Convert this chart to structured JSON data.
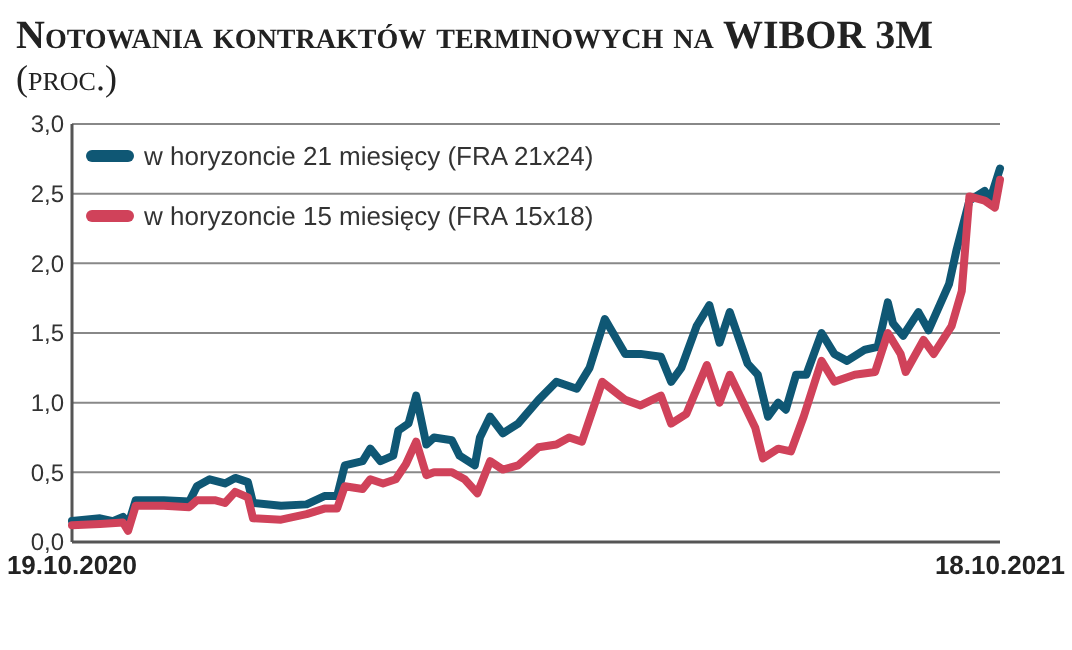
{
  "chart_data": {
    "type": "line",
    "title": "Notowania kontraktów terminowych na WIBOR 3M",
    "subtitle": "(proc.)",
    "xlim": [
      "2020-10-19",
      "2021-10-18"
    ],
    "xticks": [
      {
        "value": "2020-10-19",
        "label": "19.10.2020"
      },
      {
        "value": "2021-10-18",
        "label": "18.10.2021"
      }
    ],
    "ylim": [
      0,
      3
    ],
    "yticks": [
      {
        "value": 0,
        "label": "0,0"
      },
      {
        "value": 0.5,
        "label": "0,5"
      },
      {
        "value": 1,
        "label": "1,0"
      },
      {
        "value": 1.5,
        "label": "1,5"
      },
      {
        "value": 2,
        "label": "2,0"
      },
      {
        "value": 2.5,
        "label": "2,5"
      },
      {
        "value": 3,
        "label": "3,0"
      }
    ],
    "grid": "y",
    "legend": "top left",
    "marker": "none",
    "line_style": "solid",
    "series": [
      {
        "name": "w horyzoncie 21 miesięcy (FRA 21x24)",
        "color": "#0f5774",
        "x": [
          "2020-10-19",
          "2020-10-30",
          "2020-11-04",
          "2020-11-08",
          "2020-11-10",
          "2020-11-13",
          "2020-11-24",
          "2020-12-04",
          "2020-12-07",
          "2020-12-12",
          "2020-12-18",
          "2020-12-22",
          "2020-12-27",
          "2020-12-29",
          "2021-01-09",
          "2021-01-19",
          "2021-01-26",
          "2021-01-31",
          "2021-02-03",
          "2021-02-10",
          "2021-02-13",
          "2021-02-17",
          "2021-02-22",
          "2021-02-24",
          "2021-02-28",
          "2021-03-03",
          "2021-03-07",
          "2021-03-10",
          "2021-03-17",
          "2021-03-20",
          "2021-03-26",
          "2021-03-28",
          "2021-04-01",
          "2021-04-06",
          "2021-04-12",
          "2021-04-20",
          "2021-04-27",
          "2021-05-05",
          "2021-05-10",
          "2021-05-16",
          "2021-05-24",
          "2021-05-30",
          "2021-06-07",
          "2021-06-11",
          "2021-06-15",
          "2021-06-21",
          "2021-06-26",
          "2021-06-30",
          "2021-07-04",
          "2021-07-11",
          "2021-07-15",
          "2021-07-19",
          "2021-07-23",
          "2021-07-26",
          "2021-07-30",
          "2021-08-03",
          "2021-08-09",
          "2021-08-14",
          "2021-08-19",
          "2021-08-26",
          "2021-08-31",
          "2021-09-04",
          "2021-09-06",
          "2021-09-10",
          "2021-09-16",
          "2021-09-20",
          "2021-09-28",
          "2021-10-01",
          "2021-10-06",
          "2021-10-12",
          "2021-10-14",
          "2021-10-18"
        ],
        "values": [
          0.15,
          0.17,
          0.15,
          0.18,
          0.12,
          0.3,
          0.3,
          0.29,
          0.4,
          0.45,
          0.42,
          0.46,
          0.43,
          0.28,
          0.26,
          0.27,
          0.33,
          0.33,
          0.55,
          0.58,
          0.67,
          0.58,
          0.62,
          0.8,
          0.85,
          1.05,
          0.7,
          0.75,
          0.73,
          0.62,
          0.55,
          0.75,
          0.9,
          0.78,
          0.85,
          1.02,
          1.15,
          1.1,
          1.25,
          1.6,
          1.35,
          1.35,
          1.33,
          1.15,
          1.25,
          1.55,
          1.7,
          1.43,
          1.65,
          1.28,
          1.2,
          0.9,
          1.0,
          0.95,
          1.2,
          1.2,
          1.5,
          1.35,
          1.3,
          1.38,
          1.4,
          1.72,
          1.57,
          1.48,
          1.65,
          1.52,
          1.85,
          2.1,
          2.45,
          2.52,
          2.45,
          2.68
        ]
      },
      {
        "name": "w horyzoncie 15 miesięcy (FRA 15x18)",
        "color": "#d0425a",
        "x": [
          "2020-10-19",
          "2020-10-30",
          "2020-11-08",
          "2020-11-10",
          "2020-11-13",
          "2020-11-24",
          "2020-12-04",
          "2020-12-07",
          "2020-12-14",
          "2020-12-18",
          "2020-12-22",
          "2020-12-27",
          "2020-12-29",
          "2021-01-09",
          "2021-01-19",
          "2021-01-26",
          "2021-01-31",
          "2021-02-03",
          "2021-02-10",
          "2021-02-13",
          "2021-02-18",
          "2021-02-23",
          "2021-02-27",
          "2021-03-03",
          "2021-03-07",
          "2021-03-10",
          "2021-03-17",
          "2021-03-22",
          "2021-03-27",
          "2021-04-01",
          "2021-04-06",
          "2021-04-12",
          "2021-04-20",
          "2021-04-27",
          "2021-05-02",
          "2021-05-07",
          "2021-05-15",
          "2021-05-24",
          "2021-05-30",
          "2021-06-07",
          "2021-06-11",
          "2021-06-17",
          "2021-06-25",
          "2021-06-30",
          "2021-07-04",
          "2021-07-14",
          "2021-07-17",
          "2021-07-23",
          "2021-07-28",
          "2021-08-02",
          "2021-08-09",
          "2021-08-14",
          "2021-08-22",
          "2021-08-30",
          "2021-09-04",
          "2021-09-09",
          "2021-09-11",
          "2021-09-18",
          "2021-09-22",
          "2021-09-29",
          "2021-10-03",
          "2021-10-06",
          "2021-10-12",
          "2021-10-16",
          "2021-10-18"
        ],
        "values": [
          0.12,
          0.13,
          0.14,
          0.08,
          0.26,
          0.26,
          0.25,
          0.3,
          0.3,
          0.28,
          0.36,
          0.32,
          0.17,
          0.16,
          0.2,
          0.24,
          0.24,
          0.4,
          0.38,
          0.45,
          0.42,
          0.45,
          0.56,
          0.72,
          0.48,
          0.5,
          0.5,
          0.45,
          0.35,
          0.58,
          0.52,
          0.55,
          0.68,
          0.7,
          0.75,
          0.72,
          1.15,
          1.02,
          0.98,
          1.05,
          0.85,
          0.92,
          1.27,
          1.0,
          1.2,
          0.82,
          0.6,
          0.67,
          0.65,
          0.9,
          1.3,
          1.15,
          1.2,
          1.22,
          1.5,
          1.35,
          1.22,
          1.45,
          1.35,
          1.55,
          1.8,
          2.48,
          2.45,
          2.4,
          2.6
        ]
      }
    ]
  }
}
